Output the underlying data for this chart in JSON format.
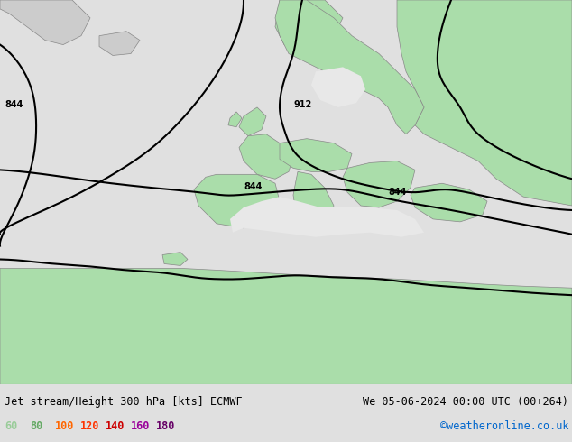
{
  "title_left": "Jet stream/Height 300 hPa [kts] ECMWF",
  "title_right": "We 05-06-2024 00:00 UTC (00+264)",
  "credit": "©weatheronline.co.uk",
  "legend_values": [
    60,
    80,
    100,
    120,
    140,
    160,
    180
  ],
  "legend_colors": [
    "#99cc99",
    "#66aa66",
    "#ff6600",
    "#ff3300",
    "#cc0000",
    "#990099",
    "#660066"
  ],
  "background_ocean": "#e8e8e8",
  "background_land": "#aaddaa",
  "background_highlight": "#c8eec8",
  "contour_color": "#000000",
  "contour_labels": [
    "912",
    "844"
  ],
  "bottom_bar_color": "#cccccc",
  "figsize": [
    6.34,
    4.9
  ],
  "dpi": 100
}
